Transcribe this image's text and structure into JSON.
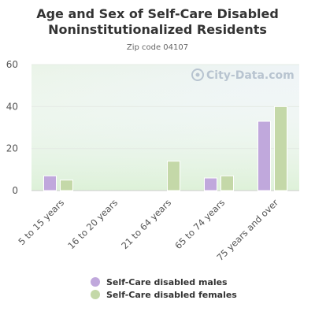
{
  "chart_data": {
    "type": "bar",
    "title": "Age and Sex of Self-Care Disabled Noninstitutionalized Residents",
    "subtitle": "Zip code 04107",
    "watermark": "City-Data.com",
    "categories": [
      "5 to 15 years",
      "16 to 20 years",
      "21 to 64 years",
      "65 to 74 years",
      "75 years and over"
    ],
    "series": [
      {
        "name": "Self-Care disabled males",
        "color": "#c0a8dc",
        "values": [
          7,
          0,
          0,
          6,
          33
        ]
      },
      {
        "name": "Self-Care disabled females",
        "color": "#c4d8a8",
        "values": [
          5,
          0,
          14,
          7,
          40
        ]
      }
    ],
    "ylim": [
      0,
      60
    ],
    "yticks": [
      0,
      20,
      40,
      60
    ],
    "grid": true,
    "legend_position": "bottom"
  }
}
